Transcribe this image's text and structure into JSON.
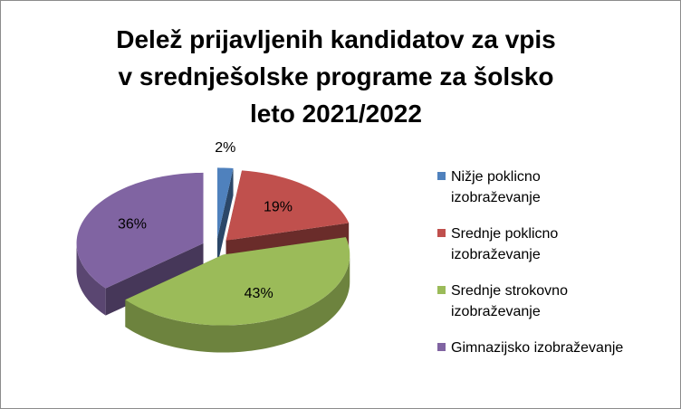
{
  "chart_data": {
    "type": "pie3d",
    "title": [
      "Delež prijavljenih kandidatov za vpis",
      "v srednješolske programe za šolsko",
      "leto 2021/2022"
    ],
    "categories": [
      "Nižje poklicno izobraževanje",
      "Srednje poklicno izobraževanje",
      "Srednje strokovno izobraževanje",
      "Gimnazijsko izobraževanje"
    ],
    "values": [
      2,
      19,
      43,
      36
    ],
    "value_labels": [
      "2%",
      "19%",
      "43%",
      "36%"
    ],
    "colors": [
      "#4f81bd",
      "#c0504d",
      "#9bbb59",
      "#8064a2"
    ],
    "legend": "right"
  }
}
